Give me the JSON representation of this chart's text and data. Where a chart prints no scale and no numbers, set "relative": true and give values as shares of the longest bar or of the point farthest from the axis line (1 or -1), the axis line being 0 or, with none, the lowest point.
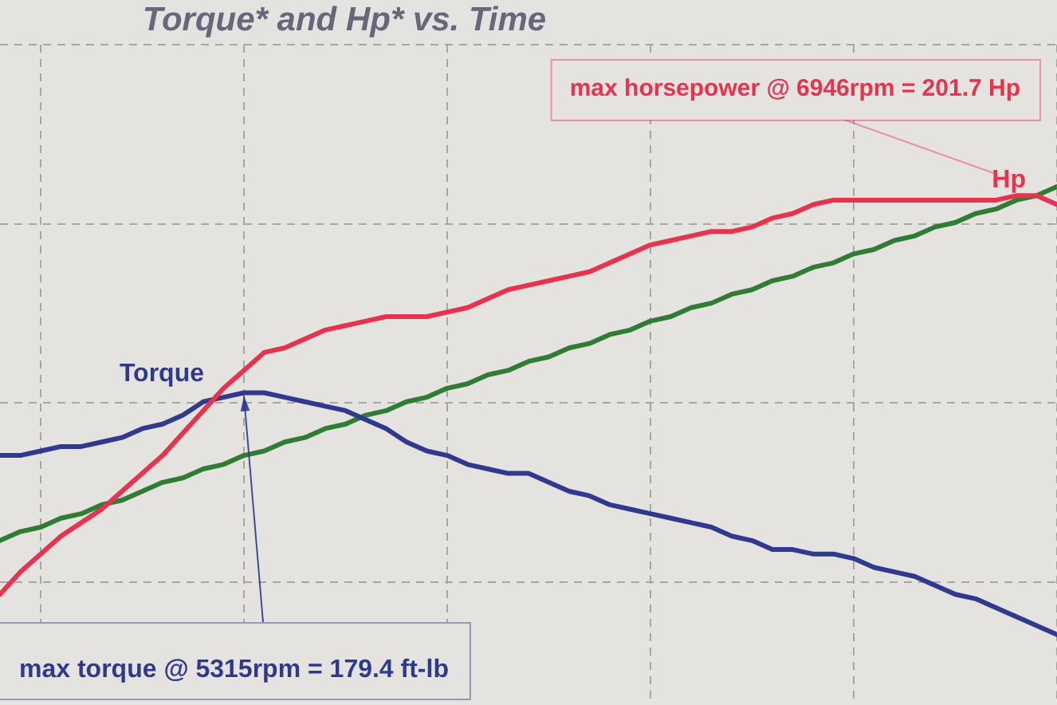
{
  "chart_data": {
    "type": "line",
    "title": "Torque* and Hp* vs. Time",
    "relative": true,
    "categories": [
      null,
      null,
      null,
      null,
      null,
      null,
      null,
      null,
      null,
      null,
      null,
      null,
      null,
      null,
      null,
      null,
      null,
      null,
      null,
      null,
      null,
      null,
      null,
      null,
      null,
      null,
      null,
      null,
      null,
      null,
      null,
      null,
      null,
      null,
      null,
      null,
      null,
      null,
      null,
      null,
      null,
      null,
      null,
      null,
      null,
      null,
      null,
      null,
      null,
      null,
      null,
      null,
      null
    ],
    "series": [
      {
        "name": "Hp",
        "color": "#e8334f",
        "values": [
          0.09,
          0.14,
          0.18,
          0.22,
          0.25,
          0.28,
          0.32,
          0.36,
          0.4,
          0.45,
          0.5,
          0.55,
          0.59,
          0.63,
          0.64,
          0.66,
          0.68,
          0.69,
          0.7,
          0.71,
          0.71,
          0.71,
          0.72,
          0.73,
          0.75,
          0.77,
          0.78,
          0.79,
          0.8,
          0.81,
          0.83,
          0.85,
          0.87,
          0.88,
          0.89,
          0.9,
          0.9,
          0.91,
          0.93,
          0.94,
          0.96,
          0.97,
          0.97,
          0.97,
          0.97,
          0.97,
          0.97,
          0.97,
          0.97,
          0.97,
          0.98,
          0.98,
          0.96
        ]
      },
      {
        "name": "Torque",
        "color": "#2f3a8f",
        "values": [
          0.4,
          0.4,
          0.41,
          0.42,
          0.42,
          0.43,
          0.44,
          0.46,
          0.47,
          0.49,
          0.52,
          0.53,
          0.54,
          0.54,
          0.53,
          0.52,
          0.51,
          0.5,
          0.48,
          0.46,
          0.43,
          0.41,
          0.4,
          0.38,
          0.37,
          0.36,
          0.36,
          0.34,
          0.32,
          0.31,
          0.29,
          0.28,
          0.27,
          0.26,
          0.25,
          0.24,
          0.22,
          0.21,
          0.19,
          0.19,
          0.18,
          0.18,
          0.17,
          0.15,
          0.14,
          0.13,
          0.11,
          0.09,
          0.08,
          0.06,
          0.04,
          0.02,
          0
        ]
      },
      {
        "color": "#2e7d32",
        "values": [
          0.21,
          0.23,
          0.24,
          0.26,
          0.27,
          0.29,
          0.3,
          0.32,
          0.34,
          0.35,
          0.37,
          0.38,
          0.4,
          0.41,
          0.43,
          0.44,
          0.46,
          0.47,
          0.49,
          0.5,
          0.52,
          0.53,
          0.55,
          0.56,
          0.58,
          0.59,
          0.61,
          0.62,
          0.64,
          0.65,
          0.67,
          0.68,
          0.7,
          0.71,
          0.73,
          0.74,
          0.76,
          0.77,
          0.79,
          0.8,
          0.82,
          0.83,
          0.85,
          0.86,
          0.88,
          0.89,
          0.91,
          0.92,
          0.94,
          0.95,
          0.97,
          0.98,
          1
        ]
      }
    ],
    "annotations": [
      "max horsepower @ 6946rpm = 201.7 Hp",
      "max torque @ 5315rpm = 179.4 ft-lb"
    ],
    "grid": true,
    "legend": false,
    "marker": "none",
    "line_style": "solid"
  }
}
